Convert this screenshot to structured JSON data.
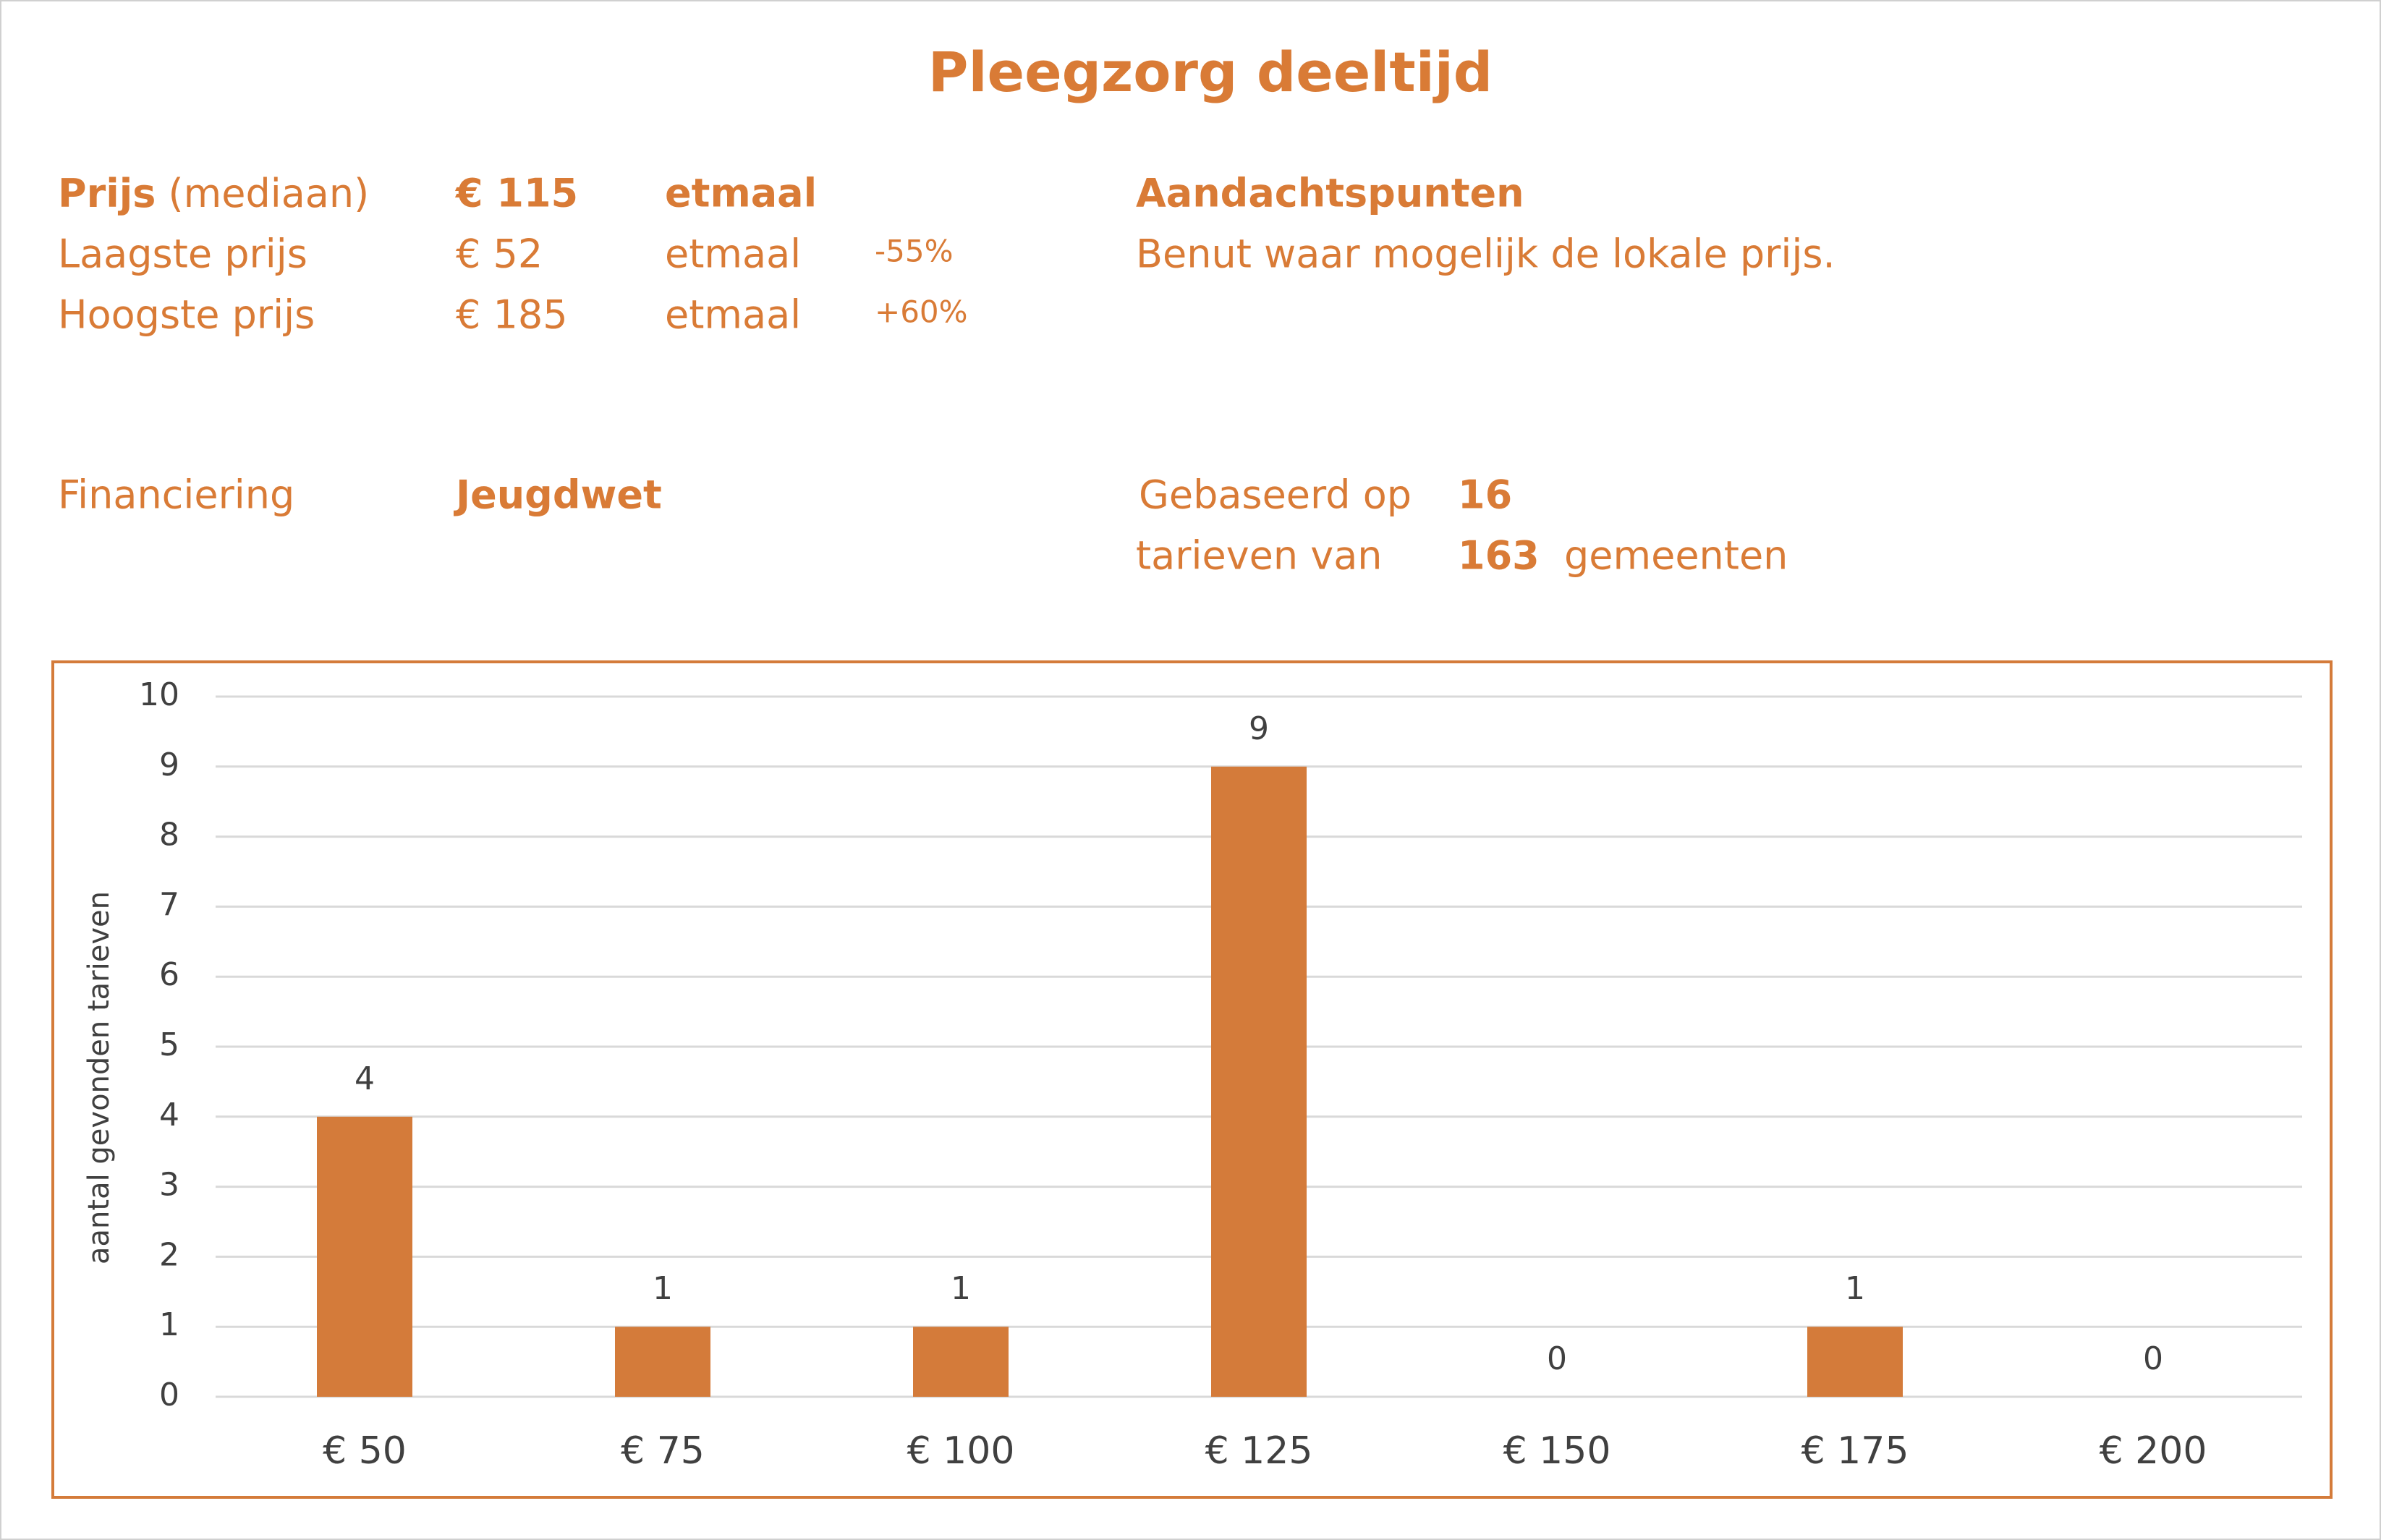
{
  "header": {
    "title": "Pleegzorg deeltijd"
  },
  "info": {
    "median": {
      "label": "Prijs",
      "note": "(mediaan)",
      "price": "€ 115",
      "unit": "etmaal"
    },
    "lowest": {
      "label": "Laagste prijs",
      "price": "€ 52",
      "unit": "etmaal",
      "change": "-55%"
    },
    "highest": {
      "label": "Hoogste prijs",
      "price": "€ 185",
      "unit": "etmaal",
      "change": "+60%"
    },
    "attention": {
      "label": "Aandachtspunten",
      "text": "Benut waar mogelijk de lokale prijs."
    },
    "funding": {
      "label": "Financiering",
      "value": "Jeugdwet"
    },
    "basis": {
      "label1": "Gebaseerd op",
      "count1": "16",
      "label2": "tarieven van",
      "count2": "163",
      "label3": "gemeenten"
    }
  },
  "chart_data": {
    "type": "bar",
    "y_label": "aantal gevonden tarieven",
    "categories": [
      "€ 50",
      "€ 75",
      "€ 100",
      "€ 125",
      "€ 150",
      "€ 175",
      "€ 200"
    ],
    "values": [
      4,
      1,
      1,
      9,
      0,
      1,
      0
    ],
    "color": "#d47b3a",
    "ylim": [
      0,
      10
    ],
    "yticks": [
      0,
      1,
      2,
      3,
      4,
      5,
      6,
      7,
      8,
      9,
      10
    ],
    "grid": true,
    "data_labels": true
  }
}
